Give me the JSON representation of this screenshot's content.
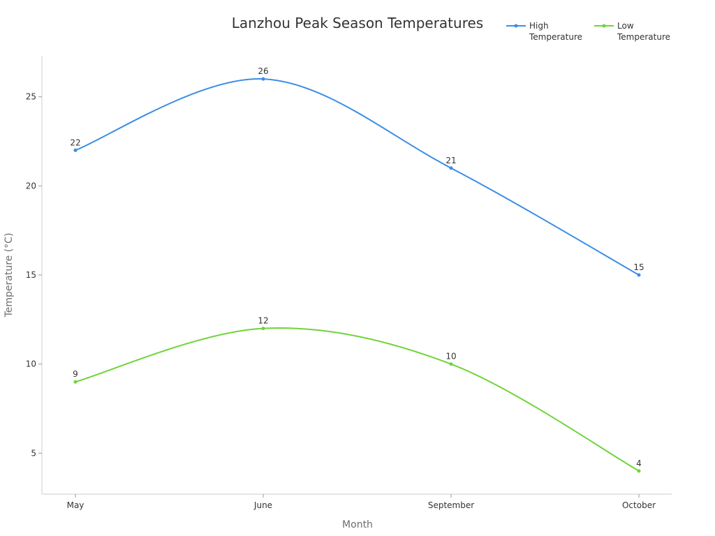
{
  "chart_data": {
    "type": "line",
    "title": "Lanzhou Peak Season Temperatures",
    "xlabel": "Month",
    "ylabel": "Temperature (°C)",
    "categories": [
      "May",
      "June",
      "September",
      "October"
    ],
    "ylim": [
      2.7,
      27.3
    ],
    "yticks": [
      5,
      10,
      15,
      20,
      25
    ],
    "grid": false,
    "legend": "top-right",
    "series": [
      {
        "name": "High Temperature",
        "values": [
          22,
          26,
          21,
          15
        ],
        "color": "#3a8ee6"
      },
      {
        "name": "Low Temperature",
        "values": [
          9,
          12,
          10,
          4
        ],
        "color": "#6fd43a"
      }
    ]
  }
}
